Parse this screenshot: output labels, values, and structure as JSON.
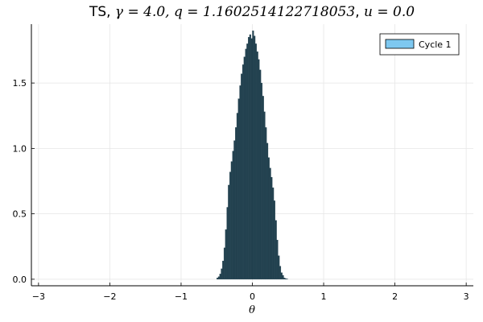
{
  "chart_data": {
    "type": "bar",
    "title_parts": {
      "prefix": "TS, ",
      "gamma_expr": "γ = 4.0, q = 1.1602514122718053",
      "sep": ", ",
      "u_expr": "u = 0.0"
    },
    "xlabel": "θ",
    "ylabel": "",
    "xlim": [
      -3.1,
      3.1
    ],
    "ylim": [
      -0.05,
      1.95
    ],
    "xticks": [
      -3,
      -2,
      -1,
      0,
      1,
      2,
      3
    ],
    "xtick_labels": [
      "−3",
      "−2",
      "−1",
      "0",
      "1",
      "2",
      "3"
    ],
    "yticks": [
      0.0,
      0.5,
      1.0,
      1.5
    ],
    "ytick_labels": [
      "0.0",
      "0.5",
      "1.0",
      "1.5"
    ],
    "grid": true,
    "legend_position": "top-right",
    "series": [
      {
        "name": "Cycle 1",
        "fill_color": "#7ec8f0",
        "bar_color": "#22414f",
        "bin_width": 0.02,
        "bins_x": [
          -0.49,
          -0.47,
          -0.45,
          -0.43,
          -0.41,
          -0.39,
          -0.37,
          -0.35,
          -0.33,
          -0.31,
          -0.29,
          -0.27,
          -0.25,
          -0.23,
          -0.21,
          -0.19,
          -0.17,
          -0.15,
          -0.13,
          -0.11,
          -0.09,
          -0.07,
          -0.05,
          -0.03,
          -0.01,
          0.01,
          0.03,
          0.05,
          0.07,
          0.09,
          0.11,
          0.13,
          0.15,
          0.17,
          0.19,
          0.21,
          0.23,
          0.25,
          0.27,
          0.29,
          0.31,
          0.33,
          0.35,
          0.37,
          0.39,
          0.41,
          0.43,
          0.45,
          0.47,
          0.49
        ],
        "values": [
          0.01,
          0.02,
          0.04,
          0.08,
          0.14,
          0.24,
          0.38,
          0.55,
          0.72,
          0.82,
          0.9,
          0.98,
          1.06,
          1.16,
          1.27,
          1.38,
          1.48,
          1.57,
          1.64,
          1.7,
          1.76,
          1.8,
          1.85,
          1.87,
          1.84,
          1.9,
          1.86,
          1.8,
          1.74,
          1.68,
          1.6,
          1.5,
          1.4,
          1.28,
          1.16,
          1.04,
          0.93,
          0.85,
          0.78,
          0.7,
          0.6,
          0.45,
          0.3,
          0.18,
          0.1,
          0.05,
          0.03,
          0.01,
          0.005,
          0.002
        ]
      }
    ]
  }
}
